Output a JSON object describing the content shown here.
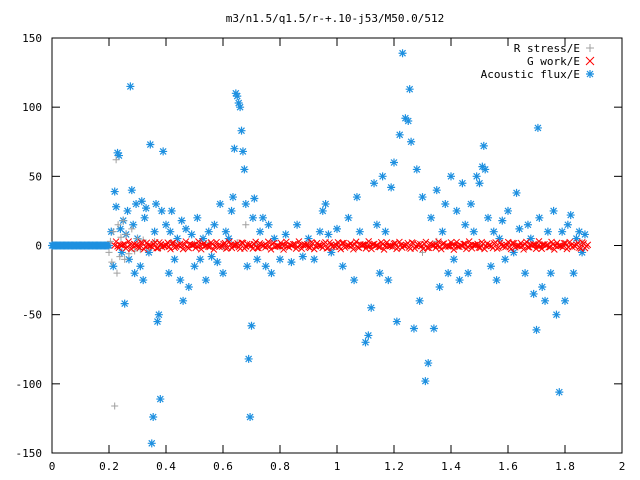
{
  "chart_data": {
    "type": "scatter",
    "title": "m3/n1.5/q1.5/r-+.10-j53/M50.0/512",
    "xlabel": "",
    "ylabel": "",
    "xlim": [
      0,
      2
    ],
    "ylim": [
      -150,
      150
    ],
    "x_ticks": [
      "0",
      "0.2",
      "0.4",
      "0.6",
      "0.8",
      "1",
      "1.2",
      "1.4",
      "1.6",
      "1.8",
      "2"
    ],
    "y_ticks": [
      "150",
      "100",
      "50",
      "0",
      "-50",
      "-100",
      "-150"
    ],
    "grid": false,
    "legend_position": "top-right",
    "series": [
      {
        "name": "R stress/E",
        "marker": "plus",
        "color": "#a0a0a0",
        "points": [
          [
            0.2,
            -5
          ],
          [
            0.205,
            3
          ],
          [
            0.21,
            -12
          ],
          [
            0.215,
            10
          ],
          [
            0.22,
            -116
          ],
          [
            0.225,
            62
          ],
          [
            0.228,
            -20
          ],
          [
            0.232,
            15
          ],
          [
            0.238,
            -8
          ],
          [
            0.242,
            6
          ],
          [
            0.25,
            18
          ],
          [
            0.255,
            -10
          ],
          [
            0.26,
            8
          ],
          [
            0.27,
            -6
          ],
          [
            0.28,
            12
          ],
          [
            0.29,
            -4
          ],
          [
            0.3,
            5
          ],
          [
            0.31,
            -3
          ],
          [
            0.32,
            4
          ],
          [
            0.34,
            -2
          ],
          [
            0.36,
            3
          ],
          [
            0.38,
            -2
          ],
          [
            0.42,
            2
          ],
          [
            0.5,
            1
          ],
          [
            0.55,
            2
          ],
          [
            0.6,
            -1
          ],
          [
            0.65,
            2
          ],
          [
            0.68,
            15
          ],
          [
            0.72,
            1
          ],
          [
            0.8,
            -1
          ],
          [
            0.9,
            1
          ],
          [
            1.0,
            1
          ],
          [
            1.1,
            0.5
          ],
          [
            1.2,
            1
          ],
          [
            1.3,
            -5
          ],
          [
            1.35,
            3
          ],
          [
            1.4,
            1
          ],
          [
            1.5,
            0.5
          ],
          [
            1.6,
            1
          ],
          [
            1.7,
            0.5
          ],
          [
            1.8,
            1
          ],
          [
            1.86,
            2
          ]
        ]
      },
      {
        "name": "G work/E",
        "marker": "cross",
        "color": "#ff0000",
        "x_start": 0.22,
        "x_end": 1.88,
        "count": 340,
        "amplitude": 3
      },
      {
        "name": "Acoustic flux/E",
        "marker": "star",
        "color": "#1e90e0",
        "baseline_x_range": [
          0,
          0.2
        ],
        "points": [
          [
            0.208,
            10
          ],
          [
            0.215,
            -15
          ],
          [
            0.22,
            39
          ],
          [
            0.225,
            28
          ],
          [
            0.23,
            67
          ],
          [
            0.235,
            65
          ],
          [
            0.24,
            12
          ],
          [
            0.245,
            -5
          ],
          [
            0.25,
            18
          ],
          [
            0.255,
            -42
          ],
          [
            0.26,
            8
          ],
          [
            0.265,
            25
          ],
          [
            0.27,
            -10
          ],
          [
            0.275,
            115
          ],
          [
            0.28,
            40
          ],
          [
            0.285,
            15
          ],
          [
            0.29,
            -20
          ],
          [
            0.295,
            30
          ],
          [
            0.3,
            5
          ],
          [
            0.31,
            -15
          ],
          [
            0.315,
            32
          ],
          [
            0.32,
            -25
          ],
          [
            0.325,
            20
          ],
          [
            0.33,
            27
          ],
          [
            0.34,
            -5
          ],
          [
            0.345,
            73
          ],
          [
            0.35,
            -143
          ],
          [
            0.355,
            -124
          ],
          [
            0.36,
            10
          ],
          [
            0.365,
            30
          ],
          [
            0.37,
            -55
          ],
          [
            0.375,
            -50
          ],
          [
            0.38,
            -111
          ],
          [
            0.385,
            25
          ],
          [
            0.39,
            68
          ],
          [
            0.4,
            15
          ],
          [
            0.41,
            -20
          ],
          [
            0.415,
            10
          ],
          [
            0.42,
            25
          ],
          [
            0.43,
            -10
          ],
          [
            0.44,
            5
          ],
          [
            0.45,
            -25
          ],
          [
            0.455,
            18
          ],
          [
            0.46,
            -40
          ],
          [
            0.47,
            12
          ],
          [
            0.48,
            -30
          ],
          [
            0.49,
            8
          ],
          [
            0.5,
            -15
          ],
          [
            0.51,
            20
          ],
          [
            0.52,
            -10
          ],
          [
            0.53,
            5
          ],
          [
            0.54,
            -25
          ],
          [
            0.55,
            10
          ],
          [
            0.56,
            -8
          ],
          [
            0.57,
            15
          ],
          [
            0.58,
            -12
          ],
          [
            0.59,
            30
          ],
          [
            0.6,
            -20
          ],
          [
            0.61,
            10
          ],
          [
            0.62,
            5
          ],
          [
            0.63,
            25
          ],
          [
            0.635,
            35
          ],
          [
            0.64,
            70
          ],
          [
            0.645,
            110
          ],
          [
            0.65,
            108
          ],
          [
            0.655,
            103
          ],
          [
            0.66,
            100
          ],
          [
            0.665,
            83
          ],
          [
            0.67,
            68
          ],
          [
            0.675,
            55
          ],
          [
            0.68,
            30
          ],
          [
            0.685,
            -15
          ],
          [
            0.69,
            -82
          ],
          [
            0.695,
            -124
          ],
          [
            0.7,
            -58
          ],
          [
            0.705,
            20
          ],
          [
            0.71,
            34
          ],
          [
            0.72,
            -10
          ],
          [
            0.73,
            10
          ],
          [
            0.74,
            20
          ],
          [
            0.75,
            -15
          ],
          [
            0.76,
            15
          ],
          [
            0.77,
            -20
          ],
          [
            0.78,
            5
          ],
          [
            0.8,
            -10
          ],
          [
            0.82,
            8
          ],
          [
            0.84,
            -12
          ],
          [
            0.86,
            15
          ],
          [
            0.88,
            -8
          ],
          [
            0.9,
            5
          ],
          [
            0.92,
            -10
          ],
          [
            0.94,
            10
          ],
          [
            0.95,
            25
          ],
          [
            0.96,
            30
          ],
          [
            0.97,
            8
          ],
          [
            0.98,
            -5
          ],
          [
            1.0,
            12
          ],
          [
            1.02,
            -15
          ],
          [
            1.04,
            20
          ],
          [
            1.06,
            -25
          ],
          [
            1.07,
            35
          ],
          [
            1.08,
            10
          ],
          [
            1.1,
            -70
          ],
          [
            1.11,
            -65
          ],
          [
            1.12,
            -45
          ],
          [
            1.13,
            45
          ],
          [
            1.14,
            15
          ],
          [
            1.15,
            -20
          ],
          [
            1.16,
            50
          ],
          [
            1.17,
            10
          ],
          [
            1.18,
            -25
          ],
          [
            1.19,
            42
          ],
          [
            1.2,
            60
          ],
          [
            1.21,
            -55
          ],
          [
            1.22,
            80
          ],
          [
            1.23,
            139
          ],
          [
            1.24,
            92
          ],
          [
            1.25,
            90
          ],
          [
            1.255,
            113
          ],
          [
            1.26,
            75
          ],
          [
            1.27,
            -60
          ],
          [
            1.28,
            55
          ],
          [
            1.29,
            -40
          ],
          [
            1.3,
            35
          ],
          [
            1.31,
            -98
          ],
          [
            1.32,
            -85
          ],
          [
            1.33,
            20
          ],
          [
            1.34,
            -60
          ],
          [
            1.35,
            40
          ],
          [
            1.36,
            -30
          ],
          [
            1.37,
            10
          ],
          [
            1.38,
            30
          ],
          [
            1.39,
            -20
          ],
          [
            1.4,
            50
          ],
          [
            1.41,
            -10
          ],
          [
            1.42,
            25
          ],
          [
            1.43,
            -25
          ],
          [
            1.44,
            45
          ],
          [
            1.45,
            15
          ],
          [
            1.46,
            -20
          ],
          [
            1.47,
            30
          ],
          [
            1.48,
            10
          ],
          [
            1.49,
            50
          ],
          [
            1.5,
            45
          ],
          [
            1.51,
            57
          ],
          [
            1.515,
            72
          ],
          [
            1.52,
            55
          ],
          [
            1.53,
            20
          ],
          [
            1.54,
            -15
          ],
          [
            1.55,
            10
          ],
          [
            1.56,
            -25
          ],
          [
            1.57,
            5
          ],
          [
            1.58,
            18
          ],
          [
            1.59,
            -10
          ],
          [
            1.6,
            25
          ],
          [
            1.62,
            -5
          ],
          [
            1.63,
            38
          ],
          [
            1.64,
            12
          ],
          [
            1.66,
            -20
          ],
          [
            1.67,
            15
          ],
          [
            1.68,
            5
          ],
          [
            1.69,
            -35
          ],
          [
            1.7,
            -61
          ],
          [
            1.705,
            85
          ],
          [
            1.71,
            20
          ],
          [
            1.72,
            -30
          ],
          [
            1.73,
            -40
          ],
          [
            1.74,
            10
          ],
          [
            1.75,
            -20
          ],
          [
            1.76,
            25
          ],
          [
            1.77,
            -50
          ],
          [
            1.78,
            -106
          ],
          [
            1.79,
            10
          ],
          [
            1.8,
            -40
          ],
          [
            1.81,
            15
          ],
          [
            1.82,
            22
          ],
          [
            1.83,
            -20
          ],
          [
            1.84,
            5
          ],
          [
            1.85,
            10
          ],
          [
            1.86,
            -5
          ],
          [
            1.87,
            8
          ]
        ]
      }
    ]
  }
}
